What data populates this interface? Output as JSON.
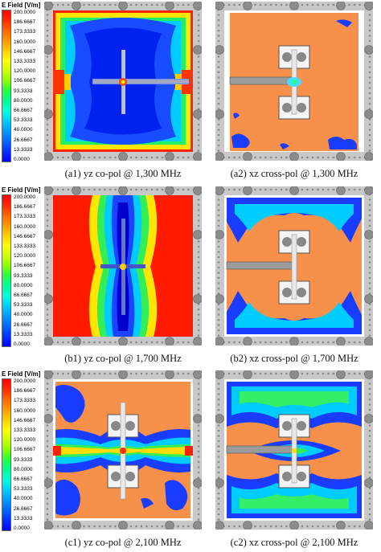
{
  "legend": {
    "title": "E Field [V/m]",
    "ticks": [
      "200.0000",
      "186.6667",
      "173.3333",
      "160.0000",
      "146.6667",
      "133.3333",
      "120.0000",
      "106.6667",
      "93.3333",
      "80.0000",
      "66.6667",
      "53.3333",
      "40.0000",
      "26.6667",
      "13.3333",
      "0.0000"
    ],
    "colors": [
      "#ff0000",
      "#ff2a00",
      "#ff6600",
      "#ff9900",
      "#ffcc00",
      "#ffff00",
      "#ccff00",
      "#88ff00",
      "#22ff44",
      "#00ff99",
      "#00ffdd",
      "#00ccff",
      "#0099ff",
      "#0066ff",
      "#0033ff",
      "#0000ff"
    ]
  },
  "captions": {
    "a1": "(a1) yz co-pol @ 1,300 MHz",
    "a2": "(a2) xz cross-pol @ 1,300 MHz",
    "b1": "(b1) yz co-pol @ 1,700 MHz",
    "b2": "(b2) xz cross-pol @ 1,700 MHz",
    "c1": "(c1) yz co-pol @ 2,100 MHz",
    "c2": "(c2) xz cross-pol @ 2,100 MHz"
  },
  "colors": {
    "frame": "#c8c8c8",
    "bolt": "#8c8c8c",
    "substrate_orange": "#f7904a",
    "field_red": "#ff1a00",
    "field_blue": "#1a3cff"
  }
}
